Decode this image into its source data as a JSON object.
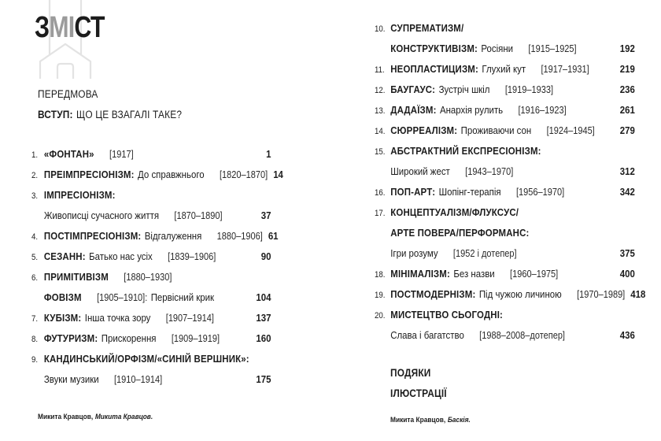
{
  "colors": {
    "ink": "#1c1c1c",
    "muted_gray": "#9b9b9b",
    "house_outline": "#e3e3e3",
    "background": "#ffffff"
  },
  "header": {
    "title_parts": {
      "part1": "З",
      "part2": "МІ",
      "part3": "СТ"
    },
    "watermark": "house-outline"
  },
  "front_matter": {
    "preface": "ПЕРЕДМОВА",
    "intro_bold": "ВСТУП:",
    "intro_rest": "ЩО ЦЕ ВЗАГАЛІ ТАКЕ?"
  },
  "entries": [
    {
      "num": "1.",
      "column": "left",
      "page": "1",
      "lines": [
        [
          {
            "t": "«ФОНТАН»",
            "s": "b"
          },
          {
            "t": "[1917]",
            "s": "d"
          }
        ]
      ]
    },
    {
      "num": "2.",
      "column": "left",
      "page": "14",
      "lines": [
        [
          {
            "t": "ПРЕІМПРЕСІОНІЗМ:",
            "s": "b"
          },
          {
            "t": "До справжнього",
            "s": "r"
          },
          {
            "t": "[1820–1870]",
            "s": "d"
          }
        ]
      ]
    },
    {
      "num": "3.",
      "column": "left",
      "page": "37",
      "lines": [
        [
          {
            "t": "ІМПРЕСІОНІЗМ:",
            "s": "b"
          }
        ],
        [
          {
            "t": "Живописці сучасного життя",
            "s": "r"
          },
          {
            "t": "[1870–1890]",
            "s": "d"
          }
        ]
      ]
    },
    {
      "num": "4.",
      "column": "left",
      "page": "61",
      "lines": [
        [
          {
            "t": "ПОСТІМПРЕСІОНІЗМ:",
            "s": "b"
          },
          {
            "t": "Відгалуження",
            "s": "r"
          },
          {
            "t": "1880–1906]",
            "s": "d"
          }
        ]
      ]
    },
    {
      "num": "5.",
      "column": "left",
      "page": "90",
      "lines": [
        [
          {
            "t": "СЕЗАНН:",
            "s": "b"
          },
          {
            "t": "Батько нас усіх",
            "s": "r"
          },
          {
            "t": "[1839–1906]",
            "s": "d"
          }
        ]
      ]
    },
    {
      "num": "6.",
      "column": "left",
      "page": "104",
      "lines": [
        [
          {
            "t": "ПРИМІТИВІЗМ",
            "s": "b"
          },
          {
            "t": "[1880–1930]",
            "s": "d"
          }
        ],
        [
          {
            "t": "ФОВІЗМ",
            "s": "b"
          },
          {
            "t": "[1905–1910]:",
            "s": "d"
          },
          {
            "t": "Первісний крик",
            "s": "r"
          }
        ]
      ]
    },
    {
      "num": "7.",
      "column": "left",
      "page": "137",
      "lines": [
        [
          {
            "t": "КУБІЗМ:",
            "s": "b"
          },
          {
            "t": "Інша точка зору",
            "s": "r"
          },
          {
            "t": "[1907–1914]",
            "s": "d"
          }
        ]
      ]
    },
    {
      "num": "8.",
      "column": "left",
      "page": "160",
      "lines": [
        [
          {
            "t": "ФУТУРИЗМ:",
            "s": "b"
          },
          {
            "t": "Прискорення",
            "s": "r"
          },
          {
            "t": "[1909–1919]",
            "s": "d"
          }
        ]
      ]
    },
    {
      "num": "9.",
      "column": "left",
      "page": "175",
      "lines": [
        [
          {
            "t": "КАНДИНСЬКИЙ/ОРФІЗМ/«СИНІЙ ВЕРШНИК»:",
            "s": "b"
          }
        ],
        [
          {
            "t": "Звуки музики",
            "s": "r"
          },
          {
            "t": "[1910–1914]",
            "s": "d"
          }
        ]
      ]
    },
    {
      "num": "10.",
      "column": "right",
      "page": "192",
      "lines": [
        [
          {
            "t": "СУПРЕМАТИЗМ/",
            "s": "b"
          }
        ],
        [
          {
            "t": "КОНСТРУКТИВІЗМ:",
            "s": "b"
          },
          {
            "t": "Росіяни",
            "s": "r"
          },
          {
            "t": "[1915–1925]",
            "s": "d"
          }
        ]
      ]
    },
    {
      "num": "11.",
      "column": "right",
      "page": "219",
      "lines": [
        [
          {
            "t": "НЕОПЛАСТИЦИЗМ:",
            "s": "b"
          },
          {
            "t": "Глухий кут",
            "s": "r"
          },
          {
            "t": "[1917–1931]",
            "s": "d"
          }
        ]
      ]
    },
    {
      "num": "12.",
      "column": "right",
      "page": "236",
      "lines": [
        [
          {
            "t": "БАУГАУС:",
            "s": "b"
          },
          {
            "t": "Зустріч шкіл",
            "s": "r"
          },
          {
            "t": "[1919–1933]",
            "s": "d"
          }
        ]
      ]
    },
    {
      "num": "13.",
      "column": "right",
      "page": "261",
      "lines": [
        [
          {
            "t": "ДАДАЇЗМ:",
            "s": "b"
          },
          {
            "t": "Анархія рулить",
            "s": "r"
          },
          {
            "t": "[1916–1923]",
            "s": "d"
          }
        ]
      ]
    },
    {
      "num": "14.",
      "column": "right",
      "page": "279",
      "lines": [
        [
          {
            "t": "СЮРРЕАЛІЗМ:",
            "s": "b"
          },
          {
            "t": "Проживаючи сон",
            "s": "r"
          },
          {
            "t": "[1924–1945]",
            "s": "d"
          }
        ]
      ]
    },
    {
      "num": "15.",
      "column": "right",
      "page": "312",
      "lines": [
        [
          {
            "t": "АБСТРАКТНИЙ ЕКСПРЕСІОНІЗМ:",
            "s": "b"
          }
        ],
        [
          {
            "t": "Широкий жест",
            "s": "r"
          },
          {
            "t": "[1943–1970]",
            "s": "d"
          }
        ]
      ]
    },
    {
      "num": "16.",
      "column": "right",
      "page": "342",
      "lines": [
        [
          {
            "t": "ПОП-АРТ:",
            "s": "b"
          },
          {
            "t": "Шопінг-терапія",
            "s": "r"
          },
          {
            "t": "[1956–1970]",
            "s": "d"
          }
        ]
      ]
    },
    {
      "num": "17.",
      "column": "right",
      "page": "375",
      "lines": [
        [
          {
            "t": "КОНЦЕПТУАЛІЗМ/ФЛУКСУС/",
            "s": "b"
          }
        ],
        [
          {
            "t": "АРТЕ ПОВЕРА/ПЕРФОРМАНС:",
            "s": "b"
          }
        ],
        [
          {
            "t": "Ігри розуму",
            "s": "r"
          },
          {
            "t": "[1952 і дотепер]",
            "s": "d"
          }
        ]
      ]
    },
    {
      "num": "18.",
      "column": "right",
      "page": "400",
      "lines": [
        [
          {
            "t": "МІНІМАЛІЗМ:",
            "s": "b"
          },
          {
            "t": "Без назви",
            "s": "r"
          },
          {
            "t": "[1960–1975]",
            "s": "d"
          }
        ]
      ]
    },
    {
      "num": "19.",
      "column": "right",
      "page": "418",
      "lines": [
        [
          {
            "t": "ПОСТМОДЕРНІЗМ:",
            "s": "b"
          },
          {
            "t": "Під чужою личиною",
            "s": "r"
          },
          {
            "t": "[1970–1989]",
            "s": "d"
          }
        ]
      ]
    },
    {
      "num": "20.",
      "column": "right",
      "page": "436",
      "lines": [
        [
          {
            "t": "МИСТЕЦТВО СЬОГОДНІ:",
            "s": "b"
          }
        ],
        [
          {
            "t": "Слава і багатство",
            "s": "r"
          },
          {
            "t": "[1988–2008–дотепер]",
            "s": "d"
          }
        ]
      ]
    }
  ],
  "back_matter": {
    "items": [
      "ПОДЯКИ",
      "ІЛЮСТРАЦІЇ"
    ]
  },
  "captions": {
    "left": {
      "name": "Микита Кравцов,",
      "work": "Микита Кравцов."
    },
    "right": {
      "name": "Микита Кравцов,",
      "work": "Баскія."
    }
  }
}
